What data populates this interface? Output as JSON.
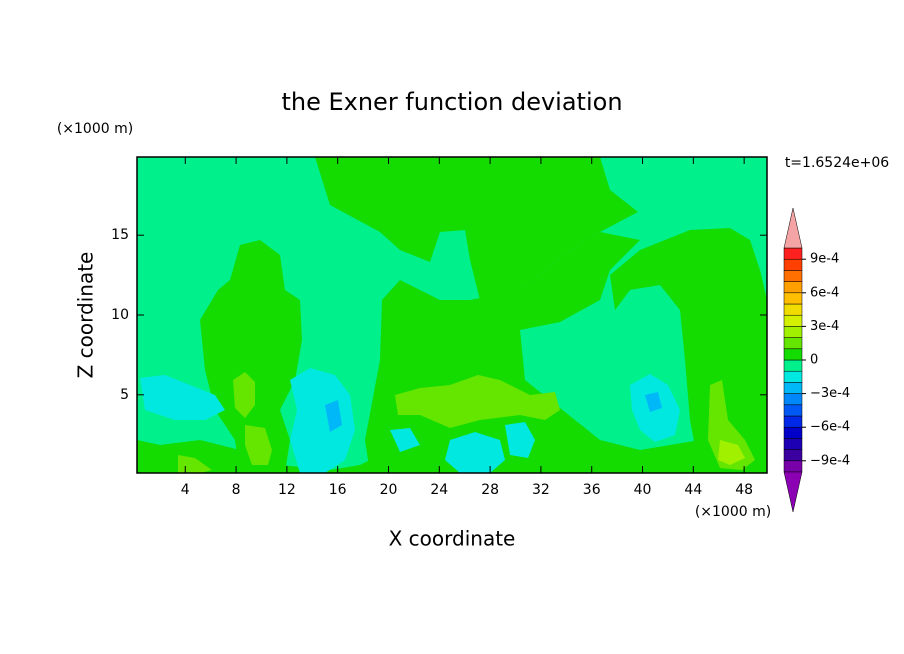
{
  "chart_data": {
    "type": "contour",
    "title": "the Exner function deviation",
    "x_label": "X coordinate",
    "y_label": "Z coordinate",
    "x_unit": "(×1000 m)",
    "y_unit": "(×1000 m)",
    "annotation": "t=1.6524e+06",
    "xlim": [
      0.2,
      49.8
    ],
    "ylim": [
      0.1,
      19.9
    ],
    "xticks": [
      4,
      8,
      12,
      16,
      20,
      24,
      28,
      32,
      36,
      40,
      44,
      48
    ],
    "yticks": [
      5,
      10,
      15
    ],
    "levels": [
      -0.001,
      -0.0009,
      -0.0008,
      -0.0007,
      -0.0006,
      -0.0005,
      -0.0004,
      -0.0003,
      -0.0002,
      -0.0001,
      0,
      0.0001,
      0.0002,
      0.0003,
      0.0004,
      0.0005,
      0.0006,
      0.0007,
      0.0008,
      0.0009,
      0.001
    ],
    "colors": [
      "#7800a8",
      "#3c00a0",
      "#1e00b4",
      "#0000c8",
      "#0028e6",
      "#0058f5",
      "#0088fa",
      "#00b8f8",
      "#00e8e0",
      "#00f08c",
      "#14dc00",
      "#64e600",
      "#a0f000",
      "#d2f000",
      "#f0dc00",
      "#ffbe00",
      "#ffa000",
      "#ff7000",
      "#ff4000",
      "#ff2020"
    ],
    "under_color": "#8c00b4",
    "over_color": "#f4a4a4",
    "colorbar_ticks": [
      {
        "value": 0.0009,
        "label": "9e-4"
      },
      {
        "value": 0.0006,
        "label": "6e-4"
      },
      {
        "value": 0.0003,
        "label": "3e-4"
      },
      0,
      {
        "value": -0.0003,
        "label": "−3e-4"
      },
      {
        "value": -0.0006,
        "label": "−6e-4"
      },
      {
        "value": -0.0009,
        "label": "−9e-4"
      }
    ]
  }
}
